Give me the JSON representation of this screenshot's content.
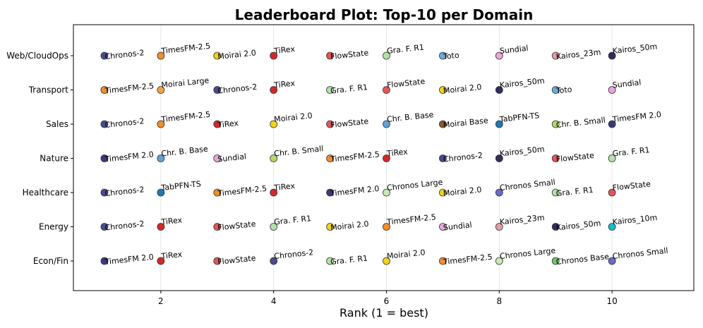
{
  "chart_data": {
    "type": "scatter",
    "title": "Leaderboard Plot: Top-10 per Domain",
    "xlabel": "Rank (1 = best)",
    "ylabel": "",
    "xlim": [
      0.45,
      11.45
    ],
    "x_ticks": [
      2,
      4,
      6,
      8,
      10
    ],
    "grid": "vertical",
    "categories": [
      "Web/CloudOps",
      "Transport",
      "Sales",
      "Nature",
      "Healthcare",
      "Energy",
      "Econ/Fin"
    ],
    "model_colors": {
      "Chronos-2": "#4a4a8f",
      "TimesFM-2.5": "#f28e2b",
      "TimesFM 2.0": "#3b3b7a",
      "Moirai 2.0": "#f2d21b",
      "Moirai Large": "#f5a142",
      "Moirai Base": "#8b5a2b",
      "TiRex": "#d62728",
      "FlowState": "#e15759",
      "Gra. F. R1": "#b5e0a8",
      "Toto": "#6baed6",
      "Sundial": "#e7a6d8",
      "Kairos_23m": "#e39ca8",
      "Kairos_50m": "#2f2f5f",
      "Kairos_10m": "#17becf",
      "Chr. B. Base": "#5fa2d8",
      "Chr. B. Small": "#b8d66b",
      "TabPFN-TS": "#1f77b4",
      "Chronos Large": "#c7e9b4",
      "Chronos Small": "#6a6ac9",
      "Chronos Base": "#74c476"
    },
    "rows": [
      {
        "domain": "Web/CloudOps",
        "models": [
          "Chronos-2",
          "TimesFM-2.5",
          "Moirai 2.0",
          "TiRex",
          "FlowState",
          "Gra. F. R1",
          "Toto",
          "Sundial",
          "Kairos_23m",
          "Kairos_50m"
        ]
      },
      {
        "domain": "Transport",
        "models": [
          "TimesFM-2.5",
          "Moirai Large",
          "Chronos-2",
          "TiRex",
          "Gra. F. R1",
          "FlowState",
          "Moirai 2.0",
          "Kairos_50m",
          "Toto",
          "Sundial"
        ]
      },
      {
        "domain": "Sales",
        "models": [
          "Chronos-2",
          "TimesFM-2.5",
          "TiRex",
          "Moirai 2.0",
          "FlowState",
          "Chr. B. Base",
          "Moirai Base",
          "TabPFN-TS",
          "Chr. B. Small",
          "TimesFM 2.0"
        ]
      },
      {
        "domain": "Nature",
        "models": [
          "TimesFM 2.0",
          "Chr. B. Base",
          "Sundial",
          "Chr. B. Small",
          "TimesFM-2.5",
          "TiRex",
          "Chronos-2",
          "Kairos_50m",
          "FlowState",
          "Gra. F. R1"
        ]
      },
      {
        "domain": "Healthcare",
        "models": [
          "Chronos-2",
          "TabPFN-TS",
          "TimesFM-2.5",
          "TiRex",
          "TimesFM 2.0",
          "Chronos Large",
          "Moirai 2.0",
          "Chronos Small",
          "Gra. F. R1",
          "FlowState"
        ]
      },
      {
        "domain": "Energy",
        "models": [
          "Chronos-2",
          "TiRex",
          "FlowState",
          "Gra. F. R1",
          "Moirai 2.0",
          "TimesFM-2.5",
          "Sundial",
          "Kairos_23m",
          "Kairos_50m",
          "Kairos_10m"
        ]
      },
      {
        "domain": "Econ/Fin",
        "models": [
          "TimesFM 2.0",
          "TiRex",
          "FlowState",
          "Chronos-2",
          "Gra. F. R1",
          "Moirai 2.0",
          "TimesFM-2.5",
          "Chronos Large",
          "Chronos Base",
          "Chronos Small"
        ]
      }
    ]
  }
}
